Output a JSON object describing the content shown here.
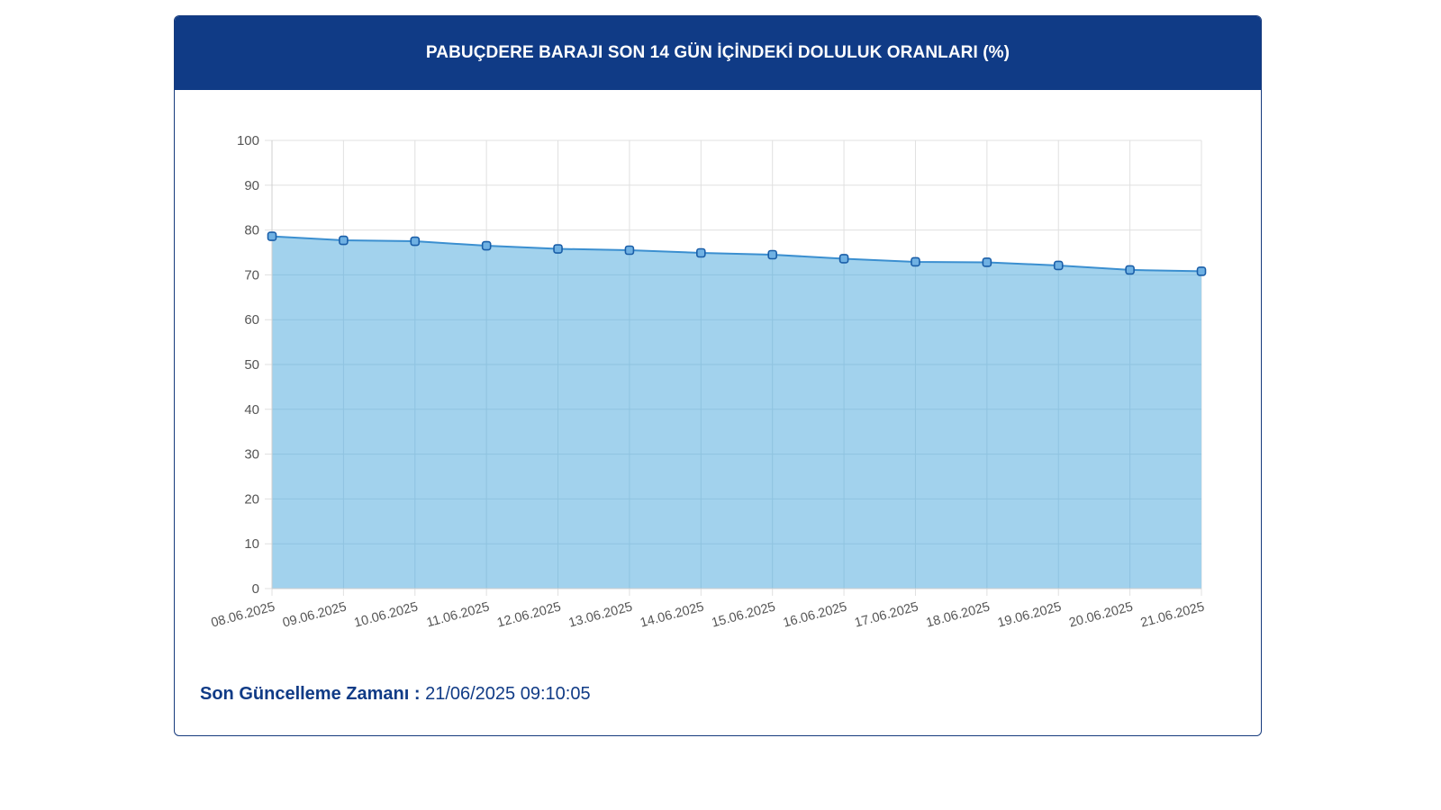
{
  "header": {
    "title": "PABUÇDERE BARAJI SON 14 GÜN İÇİNDEKİ DOLULUK ORANLARI (%)"
  },
  "footer": {
    "label": "Son Güncelleme Zamanı :",
    "value": "21/06/2025 09:10:05"
  },
  "colors": {
    "header_bg": "#103b86",
    "line": "#3b8fd0",
    "fill": "#9dd0ec",
    "marker_stroke": "#1a5ea8",
    "grid": "#e0e0e0"
  },
  "chart_data": {
    "type": "area",
    "title": "PABUÇDERE BARAJI SON 14 GÜN İÇİNDEKİ DOLULUK ORANLARI (%)",
    "xlabel": "",
    "ylabel": "",
    "ylim": [
      0,
      100
    ],
    "yticks": [
      0,
      10,
      20,
      30,
      40,
      50,
      60,
      70,
      80,
      90,
      100
    ],
    "categories": [
      "08.06.2025",
      "09.06.2025",
      "10.06.2025",
      "11.06.2025",
      "12.06.2025",
      "13.06.2025",
      "14.06.2025",
      "15.06.2025",
      "16.06.2025",
      "17.06.2025",
      "18.06.2025",
      "19.06.2025",
      "20.06.2025",
      "21.06.2025"
    ],
    "values": [
      78.6,
      77.7,
      77.5,
      76.5,
      75.8,
      75.5,
      74.9,
      74.5,
      73.6,
      72.9,
      72.8,
      72.1,
      71.1,
      70.8
    ],
    "grid": true,
    "legend": "none"
  }
}
